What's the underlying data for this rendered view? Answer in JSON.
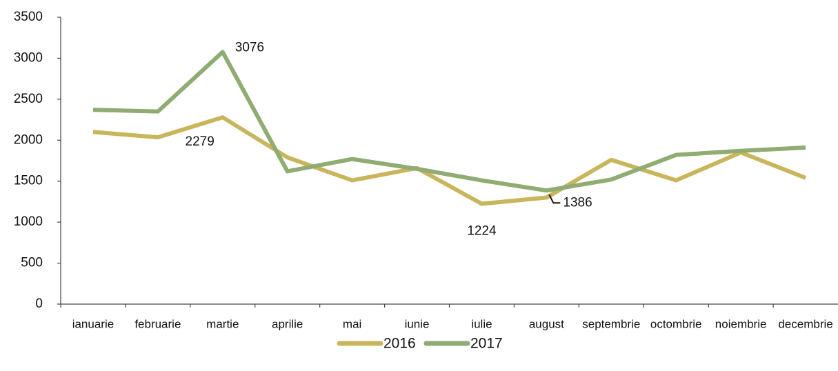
{
  "chart_data": {
    "type": "line",
    "categories": [
      "ianuarie",
      "februarie",
      "martie",
      "aprilie",
      "mai",
      "iunie",
      "iulie",
      "august",
      "septembrie",
      "octombrie",
      "noiembrie",
      "decembrie"
    ],
    "series": [
      {
        "name": "2016",
        "color": "#c9b65c",
        "values": [
          2100,
          2035,
          2279,
          1790,
          1510,
          1660,
          1224,
          1300,
          1760,
          1510,
          1850,
          1540
        ],
        "value_labels": [
          null,
          null,
          "2279",
          null,
          null,
          null,
          "1224",
          null,
          null,
          null,
          null,
          null
        ]
      },
      {
        "name": "2017",
        "color": "#8fac72",
        "values": [
          2370,
          2350,
          3076,
          1620,
          1770,
          1650,
          1510,
          1386,
          1520,
          1820,
          1870,
          1910
        ],
        "value_labels": [
          null,
          null,
          "3076",
          null,
          null,
          null,
          null,
          "1386",
          null,
          null,
          null,
          null
        ]
      }
    ],
    "ylim": [
      0,
      3500
    ],
    "yticks": [
      0,
      500,
      1000,
      1500,
      2000,
      2500,
      3000,
      3500
    ],
    "grid": false,
    "legend": "bottom"
  }
}
